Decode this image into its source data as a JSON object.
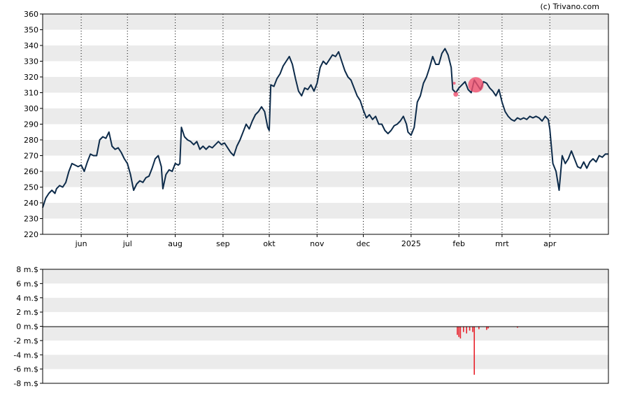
{
  "copyright": "(c) Trivano.com",
  "colors": {
    "price_line": "#0d2b4a",
    "band": "#ebebeb",
    "volume_bar": "#e8202a",
    "marker": "#f0506e"
  },
  "chart_data": [
    {
      "type": "line",
      "title": "",
      "xlabel": "",
      "ylabel": "",
      "ylim": [
        220,
        360
      ],
      "y_ticks": [
        "220",
        "230",
        "240",
        "250",
        "260",
        "270",
        "280",
        "290",
        "300",
        "310",
        "320",
        "330",
        "340",
        "350",
        "360"
      ],
      "x_tick_labels": [
        "jun",
        "jul",
        "aug",
        "sep",
        "okt",
        "nov",
        "dec",
        "2025",
        "feb",
        "mrt",
        "apr"
      ],
      "x_tick_days": [
        25,
        55,
        86,
        117,
        147,
        178,
        208,
        239,
        270,
        298,
        329
      ],
      "x_range_days": [
        0,
        367
      ],
      "grid": "vertical dotted at month ticks; alternating horizontal bands",
      "series": [
        {
          "name": "",
          "points": [
            [
              0,
              237
            ],
            [
              2,
              243
            ],
            [
              4,
              246
            ],
            [
              6,
              248
            ],
            [
              8,
              246
            ],
            [
              9,
              249
            ],
            [
              11,
              251
            ],
            [
              13,
              250
            ],
            [
              15,
              253
            ],
            [
              17,
              260
            ],
            [
              19,
              265
            ],
            [
              21,
              264
            ],
            [
              23,
              263
            ],
            [
              25,
              264
            ],
            [
              27,
              260
            ],
            [
              29,
              266
            ],
            [
              31,
              271
            ],
            [
              33,
              270
            ],
            [
              35,
              270
            ],
            [
              37,
              280
            ],
            [
              39,
              282
            ],
            [
              41,
              281
            ],
            [
              43,
              285
            ],
            [
              45,
              276
            ],
            [
              47,
              274
            ],
            [
              49,
              275
            ],
            [
              51,
              272
            ],
            [
              53,
              268
            ],
            [
              55,
              265
            ],
            [
              57,
              258
            ],
            [
              59,
              248
            ],
            [
              61,
              252
            ],
            [
              63,
              254
            ],
            [
              65,
              253
            ],
            [
              67,
              256
            ],
            [
              69,
              257
            ],
            [
              71,
              262
            ],
            [
              73,
              268
            ],
            [
              75,
              270
            ],
            [
              77,
              263
            ],
            [
              78,
              249
            ],
            [
              80,
              258
            ],
            [
              82,
              261
            ],
            [
              84,
              260
            ],
            [
              86,
              265
            ],
            [
              88,
              264
            ],
            [
              89,
              265
            ],
            [
              90,
              288
            ],
            [
              92,
              282
            ],
            [
              94,
              280
            ],
            [
              96,
              279
            ],
            [
              98,
              277
            ],
            [
              100,
              279
            ],
            [
              102,
              274
            ],
            [
              104,
              276
            ],
            [
              106,
              274
            ],
            [
              108,
              276
            ],
            [
              110,
              275
            ],
            [
              112,
              277
            ],
            [
              114,
              279
            ],
            [
              116,
              277
            ],
            [
              118,
              278
            ],
            [
              120,
              275
            ],
            [
              122,
              272
            ],
            [
              124,
              270
            ],
            [
              126,
              276
            ],
            [
              128,
              280
            ],
            [
              130,
              285
            ],
            [
              132,
              290
            ],
            [
              134,
              287
            ],
            [
              136,
              292
            ],
            [
              138,
              296
            ],
            [
              140,
              298
            ],
            [
              142,
              301
            ],
            [
              144,
              298
            ],
            [
              146,
              288
            ],
            [
              147,
              286
            ],
            [
              148,
              315
            ],
            [
              150,
              314
            ],
            [
              152,
              319
            ],
            [
              154,
              322
            ],
            [
              156,
              327
            ],
            [
              158,
              330
            ],
            [
              160,
              333
            ],
            [
              162,
              328
            ],
            [
              164,
              319
            ],
            [
              166,
              311
            ],
            [
              168,
              308
            ],
            [
              170,
              313
            ],
            [
              172,
              312
            ],
            [
              174,
              315
            ],
            [
              176,
              311
            ],
            [
              178,
              316
            ],
            [
              180,
              326
            ],
            [
              182,
              330
            ],
            [
              184,
              328
            ],
            [
              186,
              331
            ],
            [
              188,
              334
            ],
            [
              190,
              333
            ],
            [
              192,
              336
            ],
            [
              194,
              330
            ],
            [
              196,
              324
            ],
            [
              198,
              320
            ],
            [
              200,
              318
            ],
            [
              202,
              313
            ],
            [
              204,
              308
            ],
            [
              206,
              305
            ],
            [
              208,
              299
            ],
            [
              210,
              294
            ],
            [
              212,
              296
            ],
            [
              214,
              293
            ],
            [
              216,
              295
            ],
            [
              218,
              290
            ],
            [
              220,
              290
            ],
            [
              222,
              286
            ],
            [
              224,
              284
            ],
            [
              226,
              286
            ],
            [
              228,
              289
            ],
            [
              230,
              290
            ],
            [
              232,
              292
            ],
            [
              234,
              295
            ],
            [
              236,
              290
            ],
            [
              237,
              285
            ],
            [
              239,
              283
            ],
            [
              241,
              288
            ],
            [
              243,
              304
            ],
            [
              245,
              308
            ],
            [
              247,
              316
            ],
            [
              249,
              320
            ],
            [
              251,
              326
            ],
            [
              253,
              333
            ],
            [
              255,
              328
            ],
            [
              257,
              328
            ],
            [
              259,
              335
            ],
            [
              261,
              338
            ],
            [
              263,
              334
            ],
            [
              265,
              326
            ],
            [
              266,
              312
            ],
            [
              268,
              310
            ],
            [
              270,
              313
            ],
            [
              272,
              315
            ],
            [
              274,
              317
            ],
            [
              276,
              312
            ],
            [
              278,
              310
            ],
            [
              280,
              318
            ],
            [
              282,
              315
            ],
            [
              284,
              312
            ],
            [
              286,
              317
            ],
            [
              288,
              316
            ],
            [
              290,
              313
            ],
            [
              292,
              311
            ],
            [
              294,
              308
            ],
            [
              296,
              312
            ],
            [
              298,
              304
            ],
            [
              300,
              298
            ],
            [
              302,
              295
            ],
            [
              304,
              293
            ],
            [
              306,
              292
            ],
            [
              308,
              294
            ],
            [
              310,
              293
            ],
            [
              312,
              294
            ],
            [
              314,
              293
            ],
            [
              316,
              295
            ],
            [
              318,
              294
            ],
            [
              320,
              295
            ],
            [
              322,
              294
            ],
            [
              324,
              292
            ],
            [
              326,
              295
            ],
            [
              328,
              293
            ],
            [
              329,
              287
            ],
            [
              331,
              265
            ],
            [
              333,
              260
            ],
            [
              335,
              248
            ],
            [
              337,
              270
            ],
            [
              339,
              265
            ],
            [
              341,
              268
            ],
            [
              343,
              273
            ],
            [
              345,
              268
            ],
            [
              347,
              263
            ],
            [
              349,
              262
            ],
            [
              351,
              266
            ],
            [
              353,
              262
            ],
            [
              355,
              266
            ],
            [
              357,
              268
            ],
            [
              359,
              266
            ],
            [
              361,
              270
            ],
            [
              363,
              269
            ],
            [
              365,
              271
            ],
            [
              367,
              271
            ]
          ],
          "markers": [
            {
              "day": 281,
              "value": 315,
              "size": "large"
            },
            {
              "day": 268,
              "value": 309,
              "size": "small"
            },
            {
              "day": 267,
              "value": 316,
              "size": "tiny"
            }
          ]
        }
      ]
    },
    {
      "type": "bar",
      "title": "",
      "ylabel": "",
      "unit": "m.$",
      "ylim": [
        -8,
        8
      ],
      "y_ticks": [
        "8 m.$",
        "6 m.$",
        "4 m.$",
        "2 m.$",
        "0 m.$",
        "-2 m.$",
        "-4 m.$",
        "-6 m.$",
        "-8 m.$"
      ],
      "x_range_days": [
        0,
        367
      ],
      "series": [
        {
          "name": "",
          "points": [
            [
              269,
              -1.2
            ],
            [
              270,
              -1.5
            ],
            [
              271,
              -1.7
            ],
            [
              273,
              -0.8
            ],
            [
              275,
              -1.0
            ],
            [
              277,
              -0.6
            ],
            [
              279,
              -0.8
            ],
            [
              280,
              -6.8
            ],
            [
              283,
              -0.4
            ],
            [
              288,
              -0.5
            ],
            [
              289,
              -0.3
            ],
            [
              308,
              -0.2
            ]
          ]
        }
      ]
    }
  ]
}
